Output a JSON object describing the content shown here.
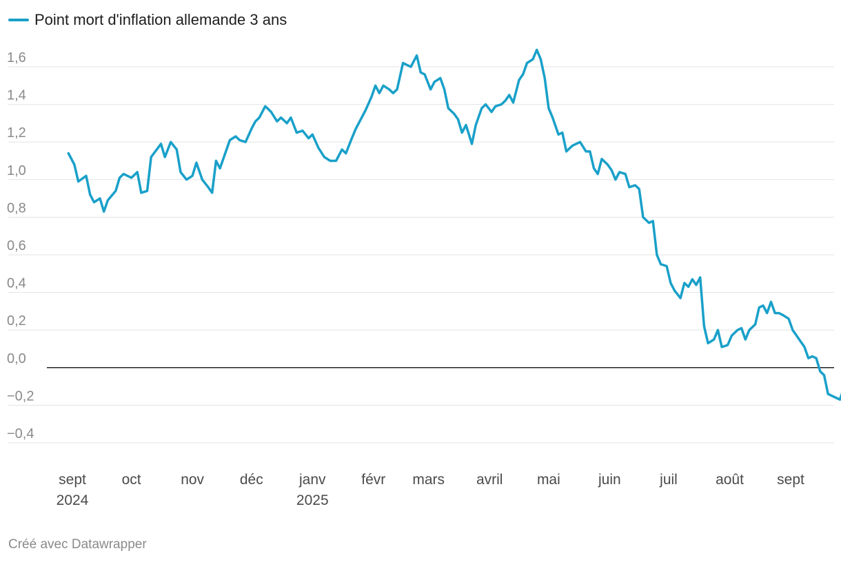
{
  "legend": {
    "label": "Point mort d'inflation allemande 3 ans"
  },
  "credit": "Créé avec Datawrapper",
  "colors": {
    "series": "#19a0c9",
    "grid": "#e3e3e3",
    "zero": "#222222"
  },
  "chart_data": {
    "type": "line",
    "title": "",
    "xlabel": "",
    "ylabel": "",
    "ylim": [
      -0.4,
      1.6
    ],
    "grid": true,
    "legend_position": "top-left",
    "y_ticks": [
      "1,6",
      "1,4",
      "1,2",
      "1,0",
      "0,8",
      "0,6",
      "0,4",
      "0,2",
      "0,0",
      "−0,2",
      "−0,4"
    ],
    "x_ticks": [
      {
        "label": "sept",
        "sub": "2024",
        "date": "2024-09-01"
      },
      {
        "label": "oct",
        "sub": "",
        "date": "2024-10-01"
      },
      {
        "label": "nov",
        "sub": "",
        "date": "2024-11-01"
      },
      {
        "label": "déc",
        "sub": "",
        "date": "2024-12-01"
      },
      {
        "label": "janv",
        "sub": "2025",
        "date": "2025-01-01"
      },
      {
        "label": "févr",
        "sub": "",
        "date": "2025-02-01"
      },
      {
        "label": "mars",
        "sub": "",
        "date": "2025-03-01"
      },
      {
        "label": "avril",
        "sub": "",
        "date": "2025-04-01"
      },
      {
        "label": "mai",
        "sub": "",
        "date": "2025-05-01"
      },
      {
        "label": "juin",
        "sub": "",
        "date": "2025-06-01"
      },
      {
        "label": "juil",
        "sub": "",
        "date": "2025-07-01"
      },
      {
        "label": "août",
        "sub": "",
        "date": "2025-08-01"
      },
      {
        "label": "sept",
        "sub": "",
        "date": "2025-09-01"
      }
    ],
    "series": [
      {
        "name": "Point mort d'inflation allemande 3 ans",
        "points": [
          [
            "2024-08-30",
            1.14
          ],
          [
            "2024-09-02",
            1.08
          ],
          [
            "2024-09-04",
            0.99
          ],
          [
            "2024-09-08",
            1.02
          ],
          [
            "2024-09-10",
            0.92
          ],
          [
            "2024-09-12",
            0.88
          ],
          [
            "2024-09-15",
            0.9
          ],
          [
            "2024-09-17",
            0.83
          ],
          [
            "2024-09-19",
            0.89
          ],
          [
            "2024-09-23",
            0.94
          ],
          [
            "2024-09-25",
            1.01
          ],
          [
            "2024-09-27",
            1.03
          ],
          [
            "2024-10-01",
            1.01
          ],
          [
            "2024-10-04",
            1.04
          ],
          [
            "2024-10-06",
            0.93
          ],
          [
            "2024-10-09",
            0.94
          ],
          [
            "2024-10-11",
            1.12
          ],
          [
            "2024-10-16",
            1.19
          ],
          [
            "2024-10-18",
            1.12
          ],
          [
            "2024-10-21",
            1.2
          ],
          [
            "2024-10-24",
            1.16
          ],
          [
            "2024-10-26",
            1.04
          ],
          [
            "2024-10-29",
            1.0
          ],
          [
            "2024-11-01",
            1.02
          ],
          [
            "2024-11-03",
            1.09
          ],
          [
            "2024-11-06",
            1.0
          ],
          [
            "2024-11-09",
            0.96
          ],
          [
            "2024-11-11",
            0.93
          ],
          [
            "2024-11-13",
            1.1
          ],
          [
            "2024-11-15",
            1.06
          ],
          [
            "2024-11-20",
            1.21
          ],
          [
            "2024-11-23",
            1.23
          ],
          [
            "2024-11-25",
            1.21
          ],
          [
            "2024-11-28",
            1.2
          ],
          [
            "2024-12-01",
            1.27
          ],
          [
            "2024-12-03",
            1.31
          ],
          [
            "2024-12-05",
            1.33
          ],
          [
            "2024-12-08",
            1.39
          ],
          [
            "2024-12-11",
            1.36
          ],
          [
            "2024-12-14",
            1.31
          ],
          [
            "2024-12-16",
            1.33
          ],
          [
            "2024-12-19",
            1.3
          ],
          [
            "2024-12-21",
            1.33
          ],
          [
            "2024-12-24",
            1.25
          ],
          [
            "2024-12-27",
            1.26
          ],
          [
            "2024-12-30",
            1.22
          ],
          [
            "2025-01-01",
            1.24
          ],
          [
            "2025-01-04",
            1.17
          ],
          [
            "2025-01-07",
            1.12
          ],
          [
            "2025-01-10",
            1.1
          ],
          [
            "2025-01-13",
            1.1
          ],
          [
            "2025-01-16",
            1.16
          ],
          [
            "2025-01-18",
            1.14
          ],
          [
            "2025-01-21",
            1.22
          ],
          [
            "2025-01-23",
            1.27
          ],
          [
            "2025-01-26",
            1.33
          ],
          [
            "2025-01-28",
            1.37
          ],
          [
            "2025-01-31",
            1.44
          ],
          [
            "2025-02-02",
            1.5
          ],
          [
            "2025-02-04",
            1.46
          ],
          [
            "2025-02-06",
            1.5
          ],
          [
            "2025-02-09",
            1.48
          ],
          [
            "2025-02-11",
            1.46
          ],
          [
            "2025-02-13",
            1.48
          ],
          [
            "2025-02-16",
            1.62
          ],
          [
            "2025-02-18",
            1.61
          ],
          [
            "2025-02-20",
            1.6
          ],
          [
            "2025-02-23",
            1.66
          ],
          [
            "2025-02-25",
            1.57
          ],
          [
            "2025-02-27",
            1.56
          ],
          [
            "2025-03-02",
            1.48
          ],
          [
            "2025-03-04",
            1.52
          ],
          [
            "2025-03-07",
            1.54
          ],
          [
            "2025-03-09",
            1.48
          ],
          [
            "2025-03-11",
            1.38
          ],
          [
            "2025-03-14",
            1.35
          ],
          [
            "2025-03-16",
            1.32
          ],
          [
            "2025-03-18",
            1.25
          ],
          [
            "2025-03-20",
            1.29
          ],
          [
            "2025-03-23",
            1.19
          ],
          [
            "2025-03-25",
            1.29
          ],
          [
            "2025-03-28",
            1.38
          ],
          [
            "2025-03-30",
            1.4
          ],
          [
            "2025-04-02",
            1.36
          ],
          [
            "2025-04-04",
            1.39
          ],
          [
            "2025-04-07",
            1.4
          ],
          [
            "2025-04-09",
            1.42
          ],
          [
            "2025-04-11",
            1.45
          ],
          [
            "2025-04-13",
            1.41
          ],
          [
            "2025-04-16",
            1.53
          ],
          [
            "2025-04-18",
            1.56
          ],
          [
            "2025-04-20",
            1.62
          ],
          [
            "2025-04-23",
            1.64
          ],
          [
            "2025-04-25",
            1.69
          ],
          [
            "2025-04-27",
            1.64
          ],
          [
            "2025-04-29",
            1.54
          ],
          [
            "2025-05-01",
            1.38
          ],
          [
            "2025-05-03",
            1.33
          ],
          [
            "2025-05-06",
            1.24
          ],
          [
            "2025-05-08",
            1.25
          ],
          [
            "2025-05-10",
            1.15
          ],
          [
            "2025-05-13",
            1.18
          ],
          [
            "2025-05-15",
            1.19
          ],
          [
            "2025-05-17",
            1.2
          ],
          [
            "2025-05-20",
            1.15
          ],
          [
            "2025-05-22",
            1.15
          ],
          [
            "2025-05-24",
            1.06
          ],
          [
            "2025-05-26",
            1.03
          ],
          [
            "2025-05-28",
            1.11
          ],
          [
            "2025-05-31",
            1.08
          ],
          [
            "2025-06-02",
            1.05
          ],
          [
            "2025-06-04",
            1.0
          ],
          [
            "2025-06-06",
            1.04
          ],
          [
            "2025-06-09",
            1.03
          ],
          [
            "2025-06-11",
            0.96
          ],
          [
            "2025-06-14",
            0.97
          ],
          [
            "2025-06-16",
            0.95
          ],
          [
            "2025-06-18",
            0.8
          ],
          [
            "2025-06-21",
            0.77
          ],
          [
            "2025-06-23",
            0.78
          ],
          [
            "2025-06-25",
            0.6
          ],
          [
            "2025-06-27",
            0.55
          ],
          [
            "2025-06-30",
            0.54
          ],
          [
            "2025-07-02",
            0.45
          ],
          [
            "2025-07-04",
            0.41
          ],
          [
            "2025-07-07",
            0.37
          ],
          [
            "2025-07-09",
            0.45
          ],
          [
            "2025-07-11",
            0.43
          ],
          [
            "2025-07-13",
            0.47
          ],
          [
            "2025-07-15",
            0.44
          ],
          [
            "2025-07-17",
            0.48
          ],
          [
            "2025-07-19",
            0.22
          ],
          [
            "2025-07-21",
            0.13
          ],
          [
            "2025-07-24",
            0.15
          ],
          [
            "2025-07-26",
            0.2
          ],
          [
            "2025-07-28",
            0.11
          ],
          [
            "2025-07-31",
            0.12
          ],
          [
            "2025-08-02",
            0.17
          ],
          [
            "2025-08-05",
            0.2
          ],
          [
            "2025-08-07",
            0.21
          ],
          [
            "2025-08-09",
            0.15
          ],
          [
            "2025-08-11",
            0.2
          ],
          [
            "2025-08-14",
            0.23
          ],
          [
            "2025-08-16",
            0.32
          ],
          [
            "2025-08-18",
            0.33
          ],
          [
            "2025-08-20",
            0.29
          ],
          [
            "2025-08-22",
            0.35
          ],
          [
            "2025-08-24",
            0.29
          ],
          [
            "2025-08-26",
            0.29
          ],
          [
            "2025-08-28",
            0.28
          ],
          [
            "2025-08-31",
            0.26
          ],
          [
            "2025-09-02",
            0.2
          ],
          [
            "2025-09-04",
            0.17
          ],
          [
            "2025-09-06",
            0.14
          ],
          [
            "2025-09-08",
            0.11
          ],
          [
            "2025-09-10",
            0.05
          ],
          [
            "2025-09-12",
            0.06
          ],
          [
            "2025-09-14",
            0.05
          ],
          [
            "2025-09-16",
            -0.02
          ],
          [
            "2025-09-18",
            -0.04
          ],
          [
            "2025-09-20",
            -0.14
          ],
          [
            "2025-09-22",
            -0.15
          ],
          [
            "2025-09-24",
            -0.16
          ],
          [
            "2025-09-26",
            -0.17
          ],
          [
            "2025-09-28",
            -0.11
          ],
          [
            "2025-09-30",
            -0.1
          ],
          [
            "2025-10-01",
            -0.05
          ]
        ]
      }
    ]
  }
}
